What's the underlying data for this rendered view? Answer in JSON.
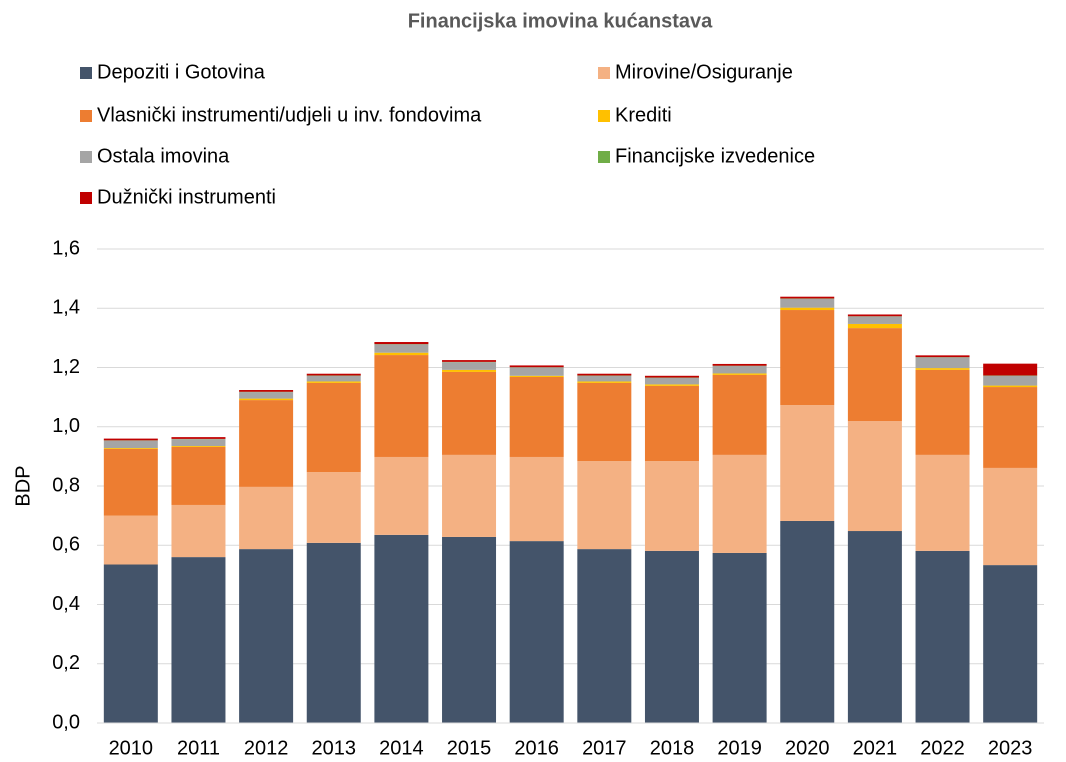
{
  "chart_data": {
    "type": "stacked_bar",
    "title": "Financijska imovina kućanstava",
    "y_label": "BDP",
    "categories": [
      "2010",
      "2011",
      "2012",
      "2013",
      "2014",
      "2015",
      "2016",
      "2017",
      "2018",
      "2019",
      "2020",
      "2021",
      "2022",
      "2023"
    ],
    "series": [
      {
        "name": "Depoziti i Gotovina",
        "color": "#44546a",
        "values": [
          0.535,
          0.56,
          0.587,
          0.608,
          0.635,
          0.628,
          0.614,
          0.587,
          0.581,
          0.574,
          0.682,
          0.648,
          0.581,
          0.533
        ]
      },
      {
        "name": "Mirovine/Osiguranje",
        "color": "#f4b183",
        "values": [
          0.165,
          0.176,
          0.21,
          0.239,
          0.263,
          0.277,
          0.284,
          0.297,
          0.303,
          0.331,
          0.391,
          0.371,
          0.324,
          0.328
        ]
      },
      {
        "name": "Vlasnički instrumenti/udjeli u inv. fondovima",
        "color": "#ed7d31",
        "values": [
          0.225,
          0.196,
          0.293,
          0.301,
          0.344,
          0.28,
          0.27,
          0.264,
          0.254,
          0.27,
          0.321,
          0.314,
          0.287,
          0.273
        ]
      },
      {
        "name": "Krediti",
        "color": "#ffc000",
        "values": [
          0.003,
          0.003,
          0.005,
          0.005,
          0.008,
          0.007,
          0.004,
          0.005,
          0.005,
          0.005,
          0.008,
          0.014,
          0.006,
          0.005
        ]
      },
      {
        "name": "Ostala imovina",
        "color": "#a5a5a5",
        "values": [
          0.025,
          0.023,
          0.022,
          0.019,
          0.028,
          0.026,
          0.028,
          0.019,
          0.022,
          0.025,
          0.03,
          0.025,
          0.036,
          0.033
        ]
      },
      {
        "name": "Financijske izvedenice",
        "color": "#70ad47",
        "values": [
          0.001,
          0.001,
          0.001,
          0.001,
          0.001,
          0.001,
          0.001,
          0.001,
          0.001,
          0.001,
          0.001,
          0.001,
          0.001,
          0.001
        ]
      },
      {
        "name": "Dužnički instrumenti",
        "color": "#c00000",
        "values": [
          0.006,
          0.006,
          0.006,
          0.006,
          0.007,
          0.006,
          0.006,
          0.006,
          0.006,
          0.006,
          0.006,
          0.006,
          0.006,
          0.04
        ]
      }
    ],
    "ylim": [
      0,
      1.6
    ],
    "yticks": [
      {
        "value": 0,
        "label": "0,0"
      },
      {
        "value": 0.2,
        "label": "0,2"
      },
      {
        "value": 0.4,
        "label": "0,4"
      },
      {
        "value": 0.6,
        "label": "0,6"
      },
      {
        "value": 0.8,
        "label": "0,8"
      },
      {
        "value": 1.0,
        "label": "1,0"
      },
      {
        "value": 1.2,
        "label": "1,2"
      },
      {
        "value": 1.4,
        "label": "1,4"
      },
      {
        "value": 1.6,
        "label": "1,6"
      }
    ],
    "grid": true,
    "legend": "top"
  }
}
